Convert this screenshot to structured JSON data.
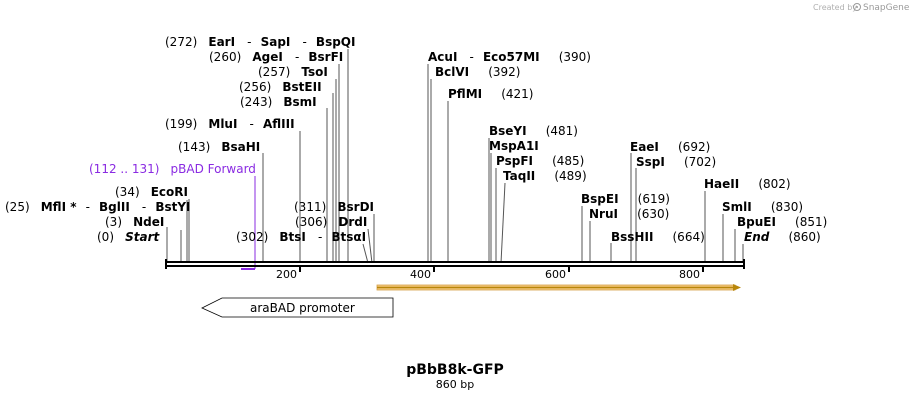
{
  "credit": {
    "prefix": "Created by",
    "brand": "SnapGene"
  },
  "plasmid": {
    "name": "pBbB8k-GFP",
    "length_label": "860 bp"
  },
  "colors": {
    "primer": "#8a2be2",
    "orf_fill": "#f4c77a",
    "orf_stroke": "#b8860b",
    "backbone": "#000000"
  },
  "ruler": {
    "ticks": [
      {
        "value": 200,
        "label": "200"
      },
      {
        "value": 400,
        "label": "400"
      },
      {
        "value": 600,
        "label": "600"
      },
      {
        "value": 800,
        "label": "800"
      }
    ]
  },
  "sites": {
    "start": {
      "pos": "(0)",
      "name": "Start"
    },
    "ndei": {
      "pos": "(3)",
      "name": "NdeI"
    },
    "mfli_group": {
      "pos": "(25)",
      "name1": "MflI *",
      "sep1": "-",
      "name2": "BglII",
      "sep2": "-",
      "name3": "BstYI"
    },
    "ecori": {
      "pos": "(34)",
      "name": "EcoRI"
    },
    "bsahi": {
      "pos": "(143)",
      "name": "BsaHI"
    },
    "mlui_group": {
      "pos": "(199)",
      "name1": "MluI",
      "sep": "-",
      "name2": "AflIII"
    },
    "bsmi": {
      "pos": "(243)",
      "name": "BsmI"
    },
    "bsteii": {
      "pos": "(256)",
      "name": "BstEII"
    },
    "tsoi": {
      "pos": "(257)",
      "name": "TsoI"
    },
    "agei_group": {
      "pos": "(260)",
      "name1": "AgeI",
      "sep": "-",
      "name2": "BsrFI"
    },
    "eari_group": {
      "pos": "(272)",
      "name1": "EarI",
      "sep1": "-",
      "name2": "SapI",
      "sep2": "-",
      "name3": "BspQI"
    },
    "btsi_group": {
      "pos": "(302)",
      "name1": "BtsI",
      "sep": "-",
      "name2": "BtsαI"
    },
    "drdi": {
      "pos": "(306)",
      "name": "DrdI"
    },
    "bsrdi": {
      "pos": "(311)",
      "name": "BsrDI"
    },
    "acui_group": {
      "name1": "AcuI",
      "sep": "-",
      "name2": "Eco57MI",
      "pos": "(390)"
    },
    "bclvi": {
      "name": "BclVI",
      "pos": "(392)"
    },
    "pflmi": {
      "name": "PflMI",
      "pos": "(421)"
    },
    "bseyi": {
      "name": "BseYI",
      "pos": "(481)"
    },
    "mspa1i": {
      "name": "MspA1I"
    },
    "pspfi": {
      "name": "PspFI",
      "pos": "(485)"
    },
    "taqii": {
      "name": "TaqII",
      "pos": "(489)"
    },
    "bspei": {
      "name": "BspEI",
      "pos": "(619)"
    },
    "nrui": {
      "name": "NruI",
      "pos": "(630)"
    },
    "bsshii": {
      "name": "BssHII",
      "pos": "(664)"
    },
    "eaei": {
      "name": "EaeI",
      "pos": "(692)"
    },
    "sspi": {
      "name": "SspI",
      "pos": "(702)"
    },
    "haeii": {
      "name": "HaeII",
      "pos": "(802)"
    },
    "smli": {
      "name": "SmlI",
      "pos": "(830)"
    },
    "bpuei": {
      "name": "BpuEI",
      "pos": "(851)"
    },
    "end": {
      "name": "End",
      "pos": "(860)"
    }
  },
  "primer": {
    "range": "(112 .. 131)",
    "name": "pBAD Forward"
  },
  "features": {
    "promoter": "araBAD promoter"
  }
}
